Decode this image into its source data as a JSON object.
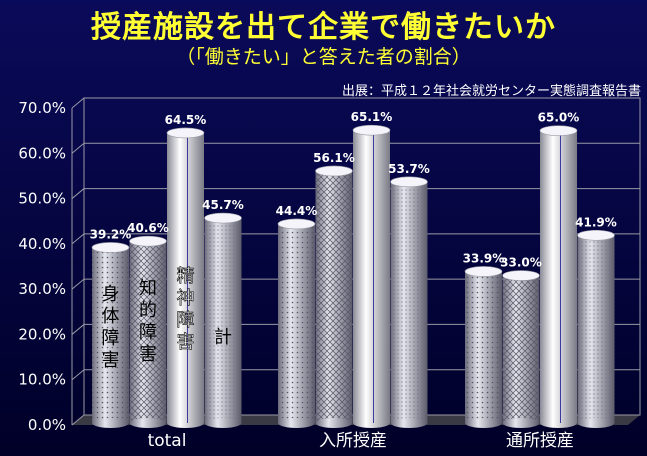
{
  "title": "授産施設を出て企業で働きたいか",
  "subtitle": "（「働きたい」と答えた者の割合）",
  "source": "出展：平成１２年社会就労センター実態調査報告書",
  "chart_data": {
    "type": "bar",
    "categories": [
      "total",
      "入所授産",
      "通所授産"
    ],
    "series": [
      {
        "name": "身体障害",
        "values": [
          39.2,
          44.4,
          33.9
        ]
      },
      {
        "name": "知的障害",
        "values": [
          40.6,
          56.1,
          33.0
        ]
      },
      {
        "name": "精神障害",
        "values": [
          64.5,
          65.1,
          65.0
        ]
      },
      {
        "name": "計",
        "values": [
          45.7,
          53.7,
          41.9
        ]
      }
    ],
    "value_labels": [
      [
        "39.2%",
        "40.6%",
        "64.5%",
        "45.7%"
      ],
      [
        "44.4%",
        "56.1%",
        "65.1%",
        "53.7%"
      ],
      [
        "33.9%",
        "33.0%",
        "65.0%",
        "41.9%"
      ]
    ],
    "ylim": [
      0,
      70
    ],
    "yticks": [
      "0.0%",
      "10.0%",
      "20.0%",
      "30.0%",
      "40.0%",
      "50.0%",
      "60.0%",
      "70.0%"
    ],
    "grid": true,
    "legend": "series names printed vertically inside the first group's bars",
    "style": [
      "dots",
      "hatch",
      "plain",
      "dots-fine"
    ]
  }
}
